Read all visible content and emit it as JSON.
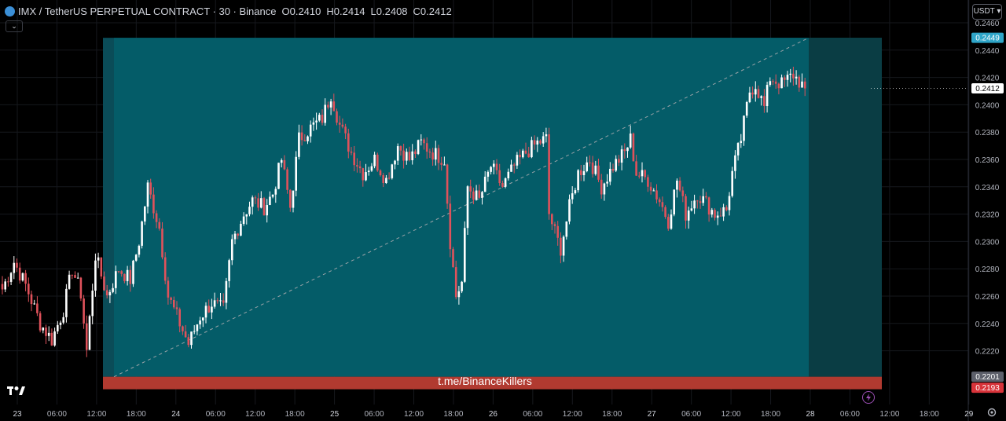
{
  "header": {
    "symbol": "IMX / TetherUS PERPETUAL CONTRACT · 30 · Binance",
    "o_label": "O",
    "o_value": "0.2410",
    "h_label": "H",
    "h_value": "0.2414",
    "l_label": "L",
    "l_value": "0.2408",
    "c_label": "C",
    "c_value": "0.2412",
    "collapse_icon": "chevron-down-icon",
    "currency": "USDT"
  },
  "watermark": "t.me/BinanceKillers",
  "icons": {
    "logo": "tradingview-logo",
    "replay": "lightning-icon",
    "settings": "gear-icon"
  },
  "chart_data": {
    "type": "candlestick",
    "title": "IMX / TetherUS PERPETUAL CONTRACT · 30 · Binance",
    "y_ticks": [
      "0.2460",
      "0.2440",
      "0.2420",
      "0.2400",
      "0.2380",
      "0.2360",
      "0.2340",
      "0.2320",
      "0.2300",
      "0.2280",
      "0.2260",
      "0.2240",
      "0.2220"
    ],
    "ylim": [
      0.2188,
      0.2462
    ],
    "x_ticks": [
      "23",
      "06:00",
      "12:00",
      "18:00",
      "24",
      "06:00",
      "12:00",
      "18:00",
      "25",
      "06:00",
      "12:00",
      "18:00",
      "26",
      "06:00",
      "12:00",
      "18:00",
      "27",
      "06:00",
      "12:00",
      "18:00",
      "28",
      "06:00",
      "12:00",
      "18:00",
      "29"
    ],
    "price_labels": [
      {
        "text": "0.2449",
        "role": "position-top",
        "color": "#2fa5c8"
      },
      {
        "text": "0.2412",
        "role": "last-price",
        "color": "#ffffff"
      },
      {
        "text": "0.2201",
        "role": "entry",
        "color": "#5d606b"
      },
      {
        "text": "0.2193",
        "role": "stop-loss",
        "color": "#d8333a"
      }
    ],
    "long_position": {
      "target": 0.2449,
      "entry": 0.2201,
      "stop": 0.2193
    },
    "trend_line": [
      [
        0.2201
      ],
      [
        0.2449
      ]
    ],
    "waypoints": [
      [
        0,
        0.2265
      ],
      [
        4,
        0.2285
      ],
      [
        8,
        0.2268
      ],
      [
        13,
        0.224
      ],
      [
        17,
        0.2228
      ],
      [
        21,
        0.225
      ],
      [
        24,
        0.228
      ],
      [
        27,
        0.2262
      ],
      [
        29,
        0.222
      ],
      [
        32,
        0.229
      ],
      [
        36,
        0.226
      ],
      [
        40,
        0.228
      ],
      [
        44,
        0.2272
      ],
      [
        47,
        0.23
      ],
      [
        50,
        0.234
      ],
      [
        54,
        0.231
      ],
      [
        57,
        0.226
      ],
      [
        61,
        0.224
      ],
      [
        64,
        0.2225
      ],
      [
        68,
        0.2245
      ],
      [
        72,
        0.2255
      ],
      [
        76,
        0.225
      ],
      [
        79,
        0.23
      ],
      [
        83,
        0.232
      ],
      [
        86,
        0.233
      ],
      [
        90,
        0.2325
      ],
      [
        93,
        0.2335
      ],
      [
        96,
        0.236
      ],
      [
        99,
        0.2325
      ],
      [
        102,
        0.2375
      ],
      [
        106,
        0.2383
      ],
      [
        110,
        0.239
      ],
      [
        113,
        0.2408
      ],
      [
        116,
        0.2385
      ],
      [
        120,
        0.2365
      ],
      [
        124,
        0.235
      ],
      [
        128,
        0.236
      ],
      [
        132,
        0.2345
      ],
      [
        136,
        0.237
      ],
      [
        140,
        0.236
      ],
      [
        144,
        0.2372
      ],
      [
        148,
        0.2365
      ],
      [
        152,
        0.236
      ],
      [
        154,
        0.23
      ],
      [
        156,
        0.226
      ],
      [
        158,
        0.227
      ],
      [
        160,
        0.234
      ],
      [
        164,
        0.233
      ],
      [
        168,
        0.2355
      ],
      [
        172,
        0.234
      ],
      [
        176,
        0.2355
      ],
      [
        180,
        0.2365
      ],
      [
        184,
        0.2372
      ],
      [
        187,
        0.2375
      ],
      [
        188,
        0.232
      ],
      [
        191,
        0.23
      ],
      [
        192,
        0.2295
      ],
      [
        195,
        0.2325
      ],
      [
        198,
        0.235
      ],
      [
        202,
        0.236
      ],
      [
        206,
        0.234
      ],
      [
        210,
        0.2355
      ],
      [
        214,
        0.2365
      ],
      [
        216,
        0.2375
      ],
      [
        218,
        0.235
      ],
      [
        222,
        0.2345
      ],
      [
        226,
        0.233
      ],
      [
        229,
        0.2315
      ],
      [
        232,
        0.2345
      ],
      [
        235,
        0.232
      ],
      [
        239,
        0.2335
      ],
      [
        242,
        0.2328
      ],
      [
        245,
        0.232
      ],
      [
        249,
        0.2323
      ],
      [
        251,
        0.235
      ],
      [
        254,
        0.2375
      ],
      [
        257,
        0.241
      ],
      [
        259,
        0.2415
      ],
      [
        262,
        0.2398
      ],
      [
        264,
        0.242
      ],
      [
        268,
        0.2415
      ],
      [
        272,
        0.2422
      ],
      [
        276,
        0.2412
      ]
    ]
  }
}
